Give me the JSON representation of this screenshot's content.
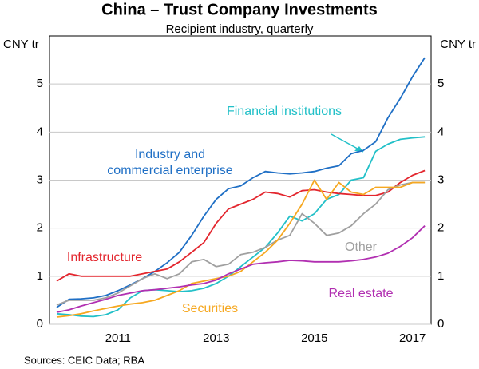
{
  "chart_data": {
    "type": "line",
    "title": "China – Trust Company Investments",
    "subtitle": "Recipient industry, quarterly",
    "y_label": "CNY tr",
    "source": "Sources: CEIC Data; RBA",
    "categories": [
      null,
      null,
      null,
      null,
      null,
      "2011",
      null,
      null,
      null,
      null,
      null,
      null,
      null,
      "2013",
      null,
      null,
      null,
      null,
      null,
      null,
      null,
      "2015",
      null,
      null,
      null,
      null,
      null,
      null,
      null,
      "2017",
      null
    ],
    "ylim": [
      0,
      6
    ],
    "yticks": [
      0,
      1,
      2,
      3,
      4,
      5
    ],
    "grid": true,
    "series": [
      {
        "name": "Industry and\ncommercial enterprise",
        "color": "#1f6fc5",
        "values": [
          0.35,
          0.52,
          0.53,
          0.55,
          0.6,
          0.7,
          0.82,
          0.95,
          1.1,
          1.28,
          1.5,
          1.85,
          2.25,
          2.6,
          2.82,
          2.88,
          3.05,
          3.18,
          3.15,
          3.13,
          3.15,
          3.18,
          3.25,
          3.3,
          3.55,
          3.62,
          3.8,
          4.3,
          4.7,
          5.15,
          5.55
        ]
      },
      {
        "name": "Financial institutions",
        "color": "#22c0c8",
        "values": [
          0.22,
          0.2,
          0.17,
          0.16,
          0.2,
          0.3,
          0.55,
          0.7,
          0.72,
          0.7,
          0.68,
          0.7,
          0.75,
          0.85,
          1.0,
          1.2,
          1.4,
          1.6,
          1.9,
          2.25,
          2.15,
          2.3,
          2.6,
          2.7,
          3.0,
          3.05,
          3.6,
          3.75,
          3.85,
          3.88,
          3.9
        ]
      },
      {
        "name": "Infrastructure",
        "color": "#e3262e",
        "values": [
          0.9,
          1.05,
          1.0,
          1.0,
          1.0,
          1.0,
          1.0,
          1.05,
          1.1,
          1.15,
          1.3,
          1.5,
          1.7,
          2.1,
          2.4,
          2.5,
          2.6,
          2.75,
          2.72,
          2.65,
          2.78,
          2.8,
          2.75,
          2.72,
          2.7,
          2.68,
          2.68,
          2.75,
          2.95,
          3.1,
          3.2
        ]
      },
      {
        "name": "Other",
        "color": "#a0a0a0",
        "values": [
          0.4,
          0.5,
          0.5,
          0.5,
          0.55,
          0.65,
          0.8,
          0.95,
          1.05,
          0.95,
          1.05,
          1.3,
          1.35,
          1.2,
          1.25,
          1.45,
          1.5,
          1.6,
          1.75,
          1.85,
          2.3,
          2.1,
          1.85,
          1.9,
          2.05,
          2.3,
          2.5,
          2.8,
          2.9,
          2.95,
          2.95
        ]
      },
      {
        "name": "Securities",
        "color": "#f6a821",
        "values": [
          0.15,
          0.18,
          0.22,
          0.28,
          0.33,
          0.38,
          0.42,
          0.45,
          0.5,
          0.6,
          0.7,
          0.85,
          0.9,
          0.95,
          1.0,
          1.1,
          1.3,
          1.5,
          1.75,
          2.1,
          2.5,
          3.0,
          2.6,
          2.95,
          2.75,
          2.7,
          2.85,
          2.85,
          2.85,
          2.95,
          2.95
        ]
      },
      {
        "name": "Real estate",
        "color": "#b12fb1",
        "values": [
          0.25,
          0.3,
          0.38,
          0.45,
          0.52,
          0.6,
          0.65,
          0.7,
          0.72,
          0.75,
          0.78,
          0.82,
          0.85,
          0.92,
          1.05,
          1.15,
          1.25,
          1.28,
          1.3,
          1.33,
          1.32,
          1.3,
          1.3,
          1.3,
          1.32,
          1.35,
          1.4,
          1.48,
          1.62,
          1.8,
          2.05
        ]
      }
    ]
  }
}
